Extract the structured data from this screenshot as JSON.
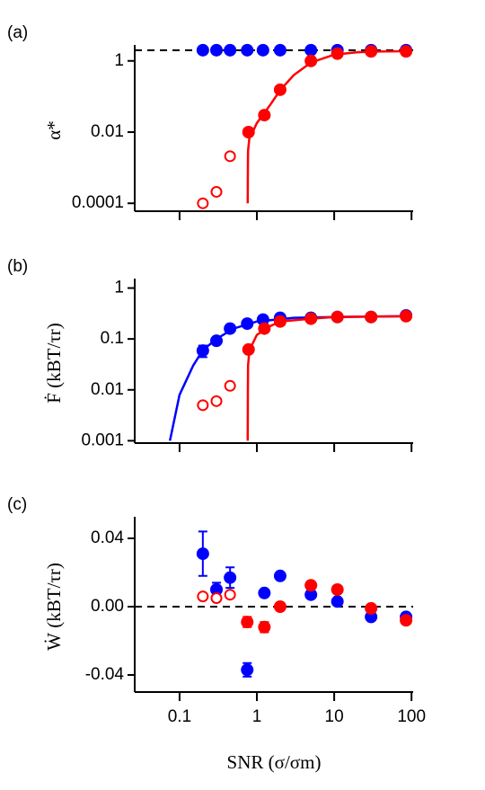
{
  "chart_data": [
    {
      "type": "scatter",
      "panel_label": "(a)",
      "ylabel": "α*",
      "xscale": "log",
      "yscale": "log",
      "xlim": [
        0.0263,
        105
      ],
      "ylim": [
        6e-05,
        2.1
      ],
      "xticks": [
        0.1,
        1,
        10,
        100
      ],
      "show_xtick_labels": false,
      "yticks": [
        0.0001,
        0.01,
        1
      ],
      "hline": {
        "value": 2,
        "color": "#000000",
        "style": "dashed"
      },
      "series": [
        {
          "kind": "line",
          "color": "#ff0000",
          "x": [
            0.76,
            0.765,
            0.77,
            0.8,
            0.9,
            1,
            1.5,
            2,
            3,
            5,
            10,
            20,
            40,
            90
          ],
          "values": [
            0.0001,
            0.001,
            0.003,
            0.007,
            0.011,
            0.018,
            0.06,
            0.15,
            0.4,
            0.9,
            1.5,
            1.75,
            1.85,
            1.87
          ]
        },
        {
          "kind": "points",
          "color": "#0000ff",
          "marker": "filled",
          "x": [
            0.2,
            0.3,
            0.45,
            0.75,
            1.2,
            2,
            5,
            11,
            30,
            85
          ],
          "values": [
            2,
            2,
            2,
            2,
            2,
            2,
            2,
            2,
            2,
            2
          ]
        },
        {
          "kind": "points",
          "color": "#ff0000",
          "marker": "filled",
          "x": [
            0.78,
            1.25,
            2,
            5,
            11,
            30,
            85
          ],
          "values": [
            0.01,
            0.03,
            0.155,
            1,
            1.6,
            1.85,
            1.85
          ]
        },
        {
          "kind": "points",
          "color": "#ff0000",
          "marker": "open",
          "x": [
            0.2,
            0.3,
            0.45
          ],
          "values": [
            0.0001,
            0.00021,
            0.0021
          ]
        }
      ]
    },
    {
      "type": "scatter",
      "panel_label": "(b)",
      "ylabel": "Ḟ (kBT/τr)",
      "xscale": "log",
      "yscale": "log",
      "xlim": [
        0.0263,
        105
      ],
      "ylim": [
        0.0009,
        1.25
      ],
      "xticks": [
        0.1,
        1,
        10,
        100
      ],
      "show_xtick_labels": false,
      "yticks": [
        0.001,
        0.01,
        0.1,
        1
      ],
      "series": [
        {
          "kind": "line",
          "color": "#0000ff",
          "x": [
            0.075,
            0.1,
            0.15,
            0.2,
            0.3,
            0.5,
            1,
            3,
            10,
            100
          ],
          "values": [
            0.001,
            0.008,
            0.03,
            0.06,
            0.1,
            0.16,
            0.22,
            0.26,
            0.27,
            0.28
          ]
        },
        {
          "kind": "line",
          "color": "#ff0000",
          "x": [
            0.76,
            0.765,
            0.77,
            0.8,
            1,
            1.5,
            2,
            5,
            10,
            100
          ],
          "values": [
            0.001,
            0.01,
            0.03,
            0.06,
            0.12,
            0.18,
            0.22,
            0.25,
            0.27,
            0.28
          ]
        },
        {
          "kind": "points",
          "color": "#0000ff",
          "marker": "filled",
          "x": [
            0.2,
            0.3,
            0.45,
            0.75,
            1.2,
            2,
            5,
            11,
            30,
            85
          ],
          "values": [
            0.059,
            0.092,
            0.16,
            0.2,
            0.24,
            0.26,
            0.26,
            0.27,
            0.27,
            0.29
          ],
          "errors": [
            0.015,
            null,
            null,
            null,
            null,
            null,
            null,
            null,
            null,
            null
          ]
        },
        {
          "kind": "points",
          "color": "#ff0000",
          "marker": "filled",
          "x": [
            0.78,
            1.25,
            2,
            5,
            11,
            30,
            85
          ],
          "values": [
            0.062,
            0.16,
            0.22,
            0.25,
            0.27,
            0.27,
            0.28
          ]
        },
        {
          "kind": "points",
          "color": "#ff0000",
          "marker": "open",
          "x": [
            0.2,
            0.3,
            0.45
          ],
          "values": [
            0.005,
            0.006,
            0.012
          ]
        }
      ]
    },
    {
      "type": "scatter",
      "panel_label": "(c)",
      "ylabel": "Ẇ (kBT/τr)",
      "xlabel": "SNR (σ/σm)",
      "xscale": "log",
      "yscale": "linear",
      "xlim": [
        0.0263,
        105
      ],
      "ylim": [
        -0.05,
        0.05
      ],
      "xticks": [
        0.1,
        1,
        10,
        100
      ],
      "show_xtick_labels": true,
      "yticks": [
        0.04,
        {
          "value": 0,
          "label": "0.00"
        },
        -0.04
      ],
      "hline": {
        "value": 0,
        "color": "#000000",
        "style": "dashed"
      },
      "series": [
        {
          "kind": "points",
          "color": "#0000ff",
          "marker": "filled",
          "x": [
            0.2,
            0.3,
            0.45,
            0.75,
            1.25,
            2,
            5,
            11,
            30,
            85
          ],
          "values": [
            0.031,
            0.01,
            0.017,
            -0.037,
            0.008,
            0.018,
            0.007,
            0.003,
            -0.006,
            -0.006
          ],
          "errors": [
            0.013,
            0.004,
            0.006,
            0.004,
            null,
            null,
            null,
            null,
            null,
            null
          ]
        },
        {
          "kind": "points",
          "color": "#ff0000",
          "marker": "filled",
          "x": [
            0.75,
            1.25,
            2,
            5,
            11,
            30,
            85
          ],
          "values": [
            -0.009,
            -0.012,
            0,
            0.0125,
            0.01,
            -0.001,
            -0.008
          ],
          "errors": [
            0.003,
            0.003,
            null,
            null,
            null,
            null,
            null
          ]
        },
        {
          "kind": "points",
          "color": "#ff0000",
          "marker": "open",
          "x": [
            0.2,
            0.3,
            0.45
          ],
          "values": [
            0.006,
            0.005,
            0.007
          ]
        }
      ]
    }
  ]
}
